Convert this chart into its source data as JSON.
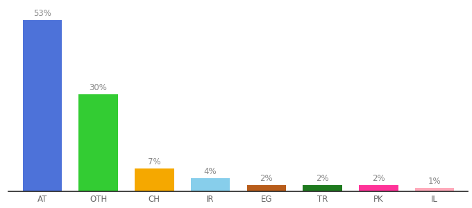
{
  "categories": [
    "AT",
    "OTH",
    "CH",
    "IR",
    "EG",
    "TR",
    "PK",
    "IL"
  ],
  "values": [
    53,
    30,
    7,
    4,
    2,
    2,
    2,
    1
  ],
  "bar_colors": [
    "#4d72d9",
    "#33cc33",
    "#f5a800",
    "#87ceeb",
    "#b85c1a",
    "#1e7a1e",
    "#ff3399",
    "#ffaabb"
  ],
  "labels": [
    "53%",
    "30%",
    "7%",
    "4%",
    "2%",
    "2%",
    "2%",
    "1%"
  ],
  "ylim": [
    0,
    58
  ],
  "background_color": "#ffffff",
  "label_fontsize": 8.5,
  "tick_fontsize": 8.5,
  "label_color": "#888888",
  "tick_color": "#666666",
  "bar_width": 0.7,
  "figsize": [
    6.8,
    3.0
  ],
  "dpi": 100
}
